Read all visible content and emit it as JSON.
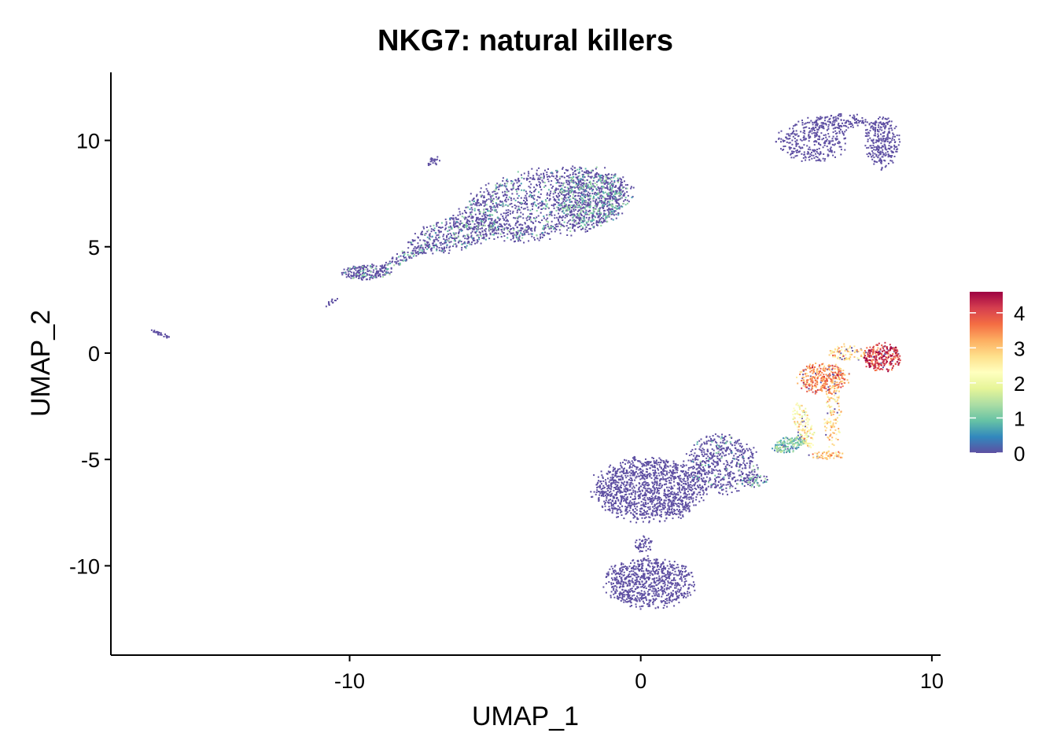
{
  "chart_data": {
    "type": "scatter",
    "title": "NKG7: natural killers",
    "xlabel": "UMAP_1",
    "ylabel": "UMAP_2",
    "xlim": [
      -18.2,
      10.3
    ],
    "ylim": [
      -14.2,
      13.2
    ],
    "x_ticks": [
      {
        "value": -10,
        "label": "-10"
      },
      {
        "value": 0,
        "label": "0"
      },
      {
        "value": 10,
        "label": "10"
      }
    ],
    "y_ticks": [
      {
        "value": 10,
        "label": "10"
      },
      {
        "value": 5,
        "label": "5"
      },
      {
        "value": 0,
        "label": "0"
      },
      {
        "value": -5,
        "label": "-5"
      },
      {
        "value": -10,
        "label": "-10"
      }
    ],
    "grid": false,
    "colorbar": {
      "min": 0,
      "max": 4.6,
      "ticks": [
        {
          "value": 4,
          "label": "4"
        },
        {
          "value": 3,
          "label": "3"
        },
        {
          "value": 2,
          "label": "2"
        },
        {
          "value": 1,
          "label": "1"
        },
        {
          "value": 0,
          "label": "0"
        }
      ],
      "colors": [
        "#5E4FA2",
        "#3288BD",
        "#66C2A5",
        "#ABDDA4",
        "#E6F598",
        "#FFFFBF",
        "#FEE08B",
        "#FDAE61",
        "#F46D43",
        "#D53E4F",
        "#9E0142"
      ]
    },
    "clusters": [
      {
        "name": "upper-left-main",
        "cx": -3.3,
        "cy": 7.0,
        "rx": 3.0,
        "ry": 1.6,
        "n": 1300,
        "rot": 0.25,
        "expr": 0.05
      },
      {
        "name": "upper-left-main-east",
        "cx": -1.7,
        "cy": 7.3,
        "rx": 1.2,
        "ry": 1.4,
        "n": 550,
        "rot": 0.0,
        "expr": 0.12
      },
      {
        "name": "upper-left-tail-mid",
        "cx": -6.4,
        "cy": 5.6,
        "rx": 1.6,
        "ry": 0.8,
        "n": 420,
        "rot": 0.35,
        "expr": 0.06
      },
      {
        "name": "upper-left-tail-west",
        "cx": -9.4,
        "cy": 3.8,
        "rx": 0.9,
        "ry": 0.35,
        "n": 200,
        "rot": 0.1,
        "expr": 0.06
      },
      {
        "name": "upper-left-link",
        "cx": -8.0,
        "cy": 4.6,
        "rx": 1.0,
        "ry": 0.25,
        "n": 90,
        "rot": 0.55,
        "expr": 0.08
      },
      {
        "name": "upper-left-small-tip",
        "cx": -7.1,
        "cy": 9.0,
        "rx": 0.2,
        "ry": 0.35,
        "n": 25,
        "rot": -0.8,
        "expr": 0.0
      },
      {
        "name": "upper-left-stray",
        "cx": -10.6,
        "cy": 2.4,
        "rx": 0.35,
        "ry": 0.1,
        "n": 14,
        "rot": 0.7,
        "expr": 0.0
      },
      {
        "name": "far-left-sliver",
        "cx": -16.5,
        "cy": 0.9,
        "rx": 0.4,
        "ry": 0.08,
        "n": 30,
        "rot": -0.55,
        "expr": 0.0
      },
      {
        "name": "upper-right-west",
        "cx": 5.9,
        "cy": 10.0,
        "rx": 1.2,
        "ry": 1.0,
        "n": 330,
        "rot": 0.0,
        "expr": 0.0
      },
      {
        "name": "upper-right-east",
        "cx": 8.3,
        "cy": 9.9,
        "rx": 0.6,
        "ry": 1.2,
        "n": 280,
        "rot": 0.0,
        "expr": 0.0
      },
      {
        "name": "upper-right-bridge",
        "cx": 6.9,
        "cy": 10.9,
        "rx": 1.0,
        "ry": 0.35,
        "n": 120,
        "rot": 0.0,
        "expr": 0.0
      },
      {
        "name": "lower-mid-main",
        "cx": 0.3,
        "cy": -6.4,
        "rx": 1.9,
        "ry": 1.5,
        "n": 1300,
        "rot": 0.0,
        "expr": 0.0
      },
      {
        "name": "lower-mid-east",
        "cx": 2.8,
        "cy": -5.2,
        "rx": 1.2,
        "ry": 1.4,
        "n": 520,
        "rot": 0.15,
        "expr": 0.03
      },
      {
        "name": "lower-mid-tail",
        "cx": 3.9,
        "cy": -6.0,
        "rx": 0.5,
        "ry": 0.3,
        "n": 60,
        "rot": 0.0,
        "expr": 0.15
      },
      {
        "name": "lower-bottom",
        "cx": 0.3,
        "cy": -10.8,
        "rx": 1.5,
        "ry": 1.2,
        "n": 800,
        "rot": 0.0,
        "expr": 0.0
      },
      {
        "name": "lower-bottom-neck",
        "cx": 0.1,
        "cy": -9.0,
        "rx": 0.3,
        "ry": 0.4,
        "n": 50,
        "rot": 0.0,
        "expr": 0.0
      },
      {
        "name": "nk-bridge",
        "cx": 5.1,
        "cy": -4.3,
        "rx": 0.6,
        "ry": 0.35,
        "n": 170,
        "rot": 0.45,
        "expr": 0.9
      },
      {
        "name": "nk-arm-left",
        "cx": 5.6,
        "cy": -3.4,
        "rx": 0.3,
        "ry": 1.1,
        "n": 130,
        "rot": 0.2,
        "expr": 2.4
      },
      {
        "name": "nk-arm-right",
        "cx": 6.6,
        "cy": -2.9,
        "rx": 0.3,
        "ry": 1.7,
        "n": 110,
        "rot": 0.0,
        "expr": 2.7
      },
      {
        "name": "nk-bottom-loop",
        "cx": 6.4,
        "cy": -4.8,
        "rx": 0.6,
        "ry": 0.2,
        "n": 60,
        "rot": 0.0,
        "expr": 3.0
      },
      {
        "name": "nk-center",
        "cx": 6.3,
        "cy": -1.2,
        "rx": 0.9,
        "ry": 0.75,
        "n": 330,
        "rot": 0.0,
        "expr": 3.4
      },
      {
        "name": "nk-right",
        "cx": 8.3,
        "cy": -0.2,
        "rx": 0.65,
        "ry": 0.65,
        "n": 270,
        "rot": 0.0,
        "expr": 4.1
      },
      {
        "name": "nk-top",
        "cx": 7.1,
        "cy": 0.0,
        "rx": 0.6,
        "ry": 0.4,
        "n": 90,
        "rot": 0.0,
        "expr": 2.8
      }
    ]
  }
}
